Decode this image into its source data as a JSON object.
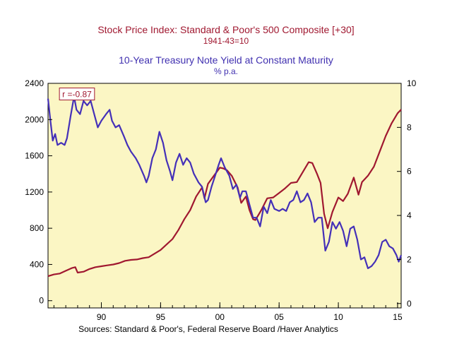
{
  "chart_data": {
    "type": "line",
    "titles": [
      {
        "text": "Stock Price Index: Standard & Poor's 500 Composite [+30]",
        "color": "#a01830"
      },
      {
        "text": "1941-43=10",
        "color": "#a01830"
      },
      {
        "text": "10-Year Treasury Note Yield at Constant Maturity",
        "color": "#4030b0"
      },
      {
        "text": "% p.a.",
        "color": "#4030b0"
      }
    ],
    "annotation": {
      "text": "r =-0.87",
      "x": 1986.7,
      "y_right": 9.5,
      "color": "#a01830"
    },
    "source": "Sources:  Standard & Poor's, Federal Reserve Board /Haver Analytics",
    "background_color": "#fbf6c4",
    "xlim": [
      1985.5,
      2015.3
    ],
    "x_ticks": [
      {
        "value": 1990,
        "label": "90"
      },
      {
        "value": 1995,
        "label": "95"
      },
      {
        "value": 2000,
        "label": "00"
      },
      {
        "value": 2005,
        "label": "05"
      },
      {
        "value": 2010,
        "label": "10"
      },
      {
        "value": 2015,
        "label": "15"
      }
    ],
    "y_left": {
      "lim": [
        -80,
        2400
      ],
      "ticks": [
        0,
        400,
        800,
        1200,
        1600,
        2000,
        2400
      ]
    },
    "y_right": {
      "lim": [
        -0.2,
        10
      ],
      "ticks": [
        0,
        2,
        4,
        6,
        8,
        10
      ]
    },
    "grid": false,
    "series": [
      {
        "axis": "left",
        "color": "#a01830",
        "points": [
          [
            1985.5,
            270
          ],
          [
            1986.0,
            290
          ],
          [
            1986.5,
            300
          ],
          [
            1987.0,
            330
          ],
          [
            1987.5,
            360
          ],
          [
            1987.8,
            370
          ],
          [
            1988.0,
            310
          ],
          [
            1988.5,
            320
          ],
          [
            1989.0,
            350
          ],
          [
            1989.5,
            370
          ],
          [
            1990.0,
            380
          ],
          [
            1990.5,
            390
          ],
          [
            1991.0,
            400
          ],
          [
            1991.5,
            415
          ],
          [
            1992.0,
            440
          ],
          [
            1992.5,
            450
          ],
          [
            1993.0,
            455
          ],
          [
            1993.5,
            470
          ],
          [
            1994.0,
            480
          ],
          [
            1994.5,
            520
          ],
          [
            1995.0,
            560
          ],
          [
            1995.5,
            620
          ],
          [
            1996.0,
            680
          ],
          [
            1996.5,
            780
          ],
          [
            1997.0,
            900
          ],
          [
            1997.5,
            1000
          ],
          [
            1998.0,
            1150
          ],
          [
            1998.5,
            1250
          ],
          [
            1998.7,
            1130
          ],
          [
            1999.0,
            1290
          ],
          [
            1999.5,
            1380
          ],
          [
            2000.0,
            1470
          ],
          [
            2000.3,
            1460
          ],
          [
            2000.6,
            1440
          ],
          [
            2001.0,
            1380
          ],
          [
            2001.5,
            1250
          ],
          [
            2001.8,
            1080
          ],
          [
            2002.2,
            1150
          ],
          [
            2002.5,
            1000
          ],
          [
            2002.8,
            900
          ],
          [
            2003.0,
            890
          ],
          [
            2003.5,
            1000
          ],
          [
            2004.0,
            1130
          ],
          [
            2004.5,
            1140
          ],
          [
            2005.0,
            1190
          ],
          [
            2005.5,
            1240
          ],
          [
            2006.0,
            1300
          ],
          [
            2006.5,
            1310
          ],
          [
            2007.0,
            1420
          ],
          [
            2007.5,
            1530
          ],
          [
            2007.8,
            1520
          ],
          [
            2008.2,
            1400
          ],
          [
            2008.5,
            1300
          ],
          [
            2008.8,
            960
          ],
          [
            2009.1,
            800
          ],
          [
            2009.5,
            980
          ],
          [
            2010.0,
            1140
          ],
          [
            2010.4,
            1100
          ],
          [
            2010.8,
            1180
          ],
          [
            2011.3,
            1360
          ],
          [
            2011.7,
            1170
          ],
          [
            2012.0,
            1310
          ],
          [
            2012.5,
            1380
          ],
          [
            2013.0,
            1480
          ],
          [
            2013.5,
            1650
          ],
          [
            2014.0,
            1820
          ],
          [
            2014.5,
            1960
          ],
          [
            2015.0,
            2070
          ],
          [
            2015.3,
            2110
          ]
        ]
      },
      {
        "axis": "right",
        "color": "#4430b8",
        "points": [
          [
            1985.5,
            9.3
          ],
          [
            1985.7,
            8.3
          ],
          [
            1985.9,
            7.4
          ],
          [
            1986.1,
            7.7
          ],
          [
            1986.3,
            7.2
          ],
          [
            1986.6,
            7.3
          ],
          [
            1986.9,
            7.2
          ],
          [
            1987.1,
            7.5
          ],
          [
            1987.4,
            8.5
          ],
          [
            1987.7,
            9.4
          ],
          [
            1987.9,
            8.8
          ],
          [
            1988.2,
            8.6
          ],
          [
            1988.5,
            9.2
          ],
          [
            1988.8,
            9.0
          ],
          [
            1989.1,
            9.2
          ],
          [
            1989.4,
            8.6
          ],
          [
            1989.7,
            8.0
          ],
          [
            1990.0,
            8.3
          ],
          [
            1990.4,
            8.6
          ],
          [
            1990.7,
            8.8
          ],
          [
            1990.9,
            8.3
          ],
          [
            1991.2,
            8.0
          ],
          [
            1991.5,
            8.1
          ],
          [
            1991.9,
            7.6
          ],
          [
            1992.2,
            7.2
          ],
          [
            1992.5,
            6.9
          ],
          [
            1992.9,
            6.6
          ],
          [
            1993.2,
            6.3
          ],
          [
            1993.6,
            5.8
          ],
          [
            1993.8,
            5.5
          ],
          [
            1994.0,
            5.8
          ],
          [
            1994.3,
            6.6
          ],
          [
            1994.6,
            7.0
          ],
          [
            1994.9,
            7.8
          ],
          [
            1995.2,
            7.3
          ],
          [
            1995.5,
            6.5
          ],
          [
            1995.8,
            6.0
          ],
          [
            1996.0,
            5.6
          ],
          [
            1996.3,
            6.4
          ],
          [
            1996.6,
            6.8
          ],
          [
            1996.9,
            6.3
          ],
          [
            1997.2,
            6.6
          ],
          [
            1997.5,
            6.4
          ],
          [
            1997.8,
            5.9
          ],
          [
            1998.2,
            5.5
          ],
          [
            1998.5,
            5.3
          ],
          [
            1998.8,
            4.6
          ],
          [
            1999.0,
            4.7
          ],
          [
            1999.3,
            5.3
          ],
          [
            1999.6,
            5.8
          ],
          [
            1999.9,
            6.3
          ],
          [
            2000.1,
            6.6
          ],
          [
            2000.4,
            6.2
          ],
          [
            2000.8,
            5.8
          ],
          [
            2001.1,
            5.2
          ],
          [
            2001.4,
            5.4
          ],
          [
            2001.7,
            4.8
          ],
          [
            2001.9,
            5.1
          ],
          [
            2002.2,
            5.1
          ],
          [
            2002.5,
            4.5
          ],
          [
            2002.8,
            3.9
          ],
          [
            2003.1,
            3.9
          ],
          [
            2003.4,
            3.5
          ],
          [
            2003.7,
            4.4
          ],
          [
            2004.0,
            4.1
          ],
          [
            2004.3,
            4.7
          ],
          [
            2004.6,
            4.3
          ],
          [
            2005.0,
            4.2
          ],
          [
            2005.3,
            4.3
          ],
          [
            2005.6,
            4.2
          ],
          [
            2005.9,
            4.6
          ],
          [
            2006.2,
            4.7
          ],
          [
            2006.5,
            5.1
          ],
          [
            2006.8,
            4.6
          ],
          [
            2007.1,
            4.7
          ],
          [
            2007.4,
            5.0
          ],
          [
            2007.7,
            4.6
          ],
          [
            2008.0,
            3.7
          ],
          [
            2008.3,
            3.9
          ],
          [
            2008.6,
            3.9
          ],
          [
            2008.9,
            2.4
          ],
          [
            2009.2,
            2.8
          ],
          [
            2009.5,
            3.7
          ],
          [
            2009.8,
            3.4
          ],
          [
            2010.1,
            3.7
          ],
          [
            2010.4,
            3.3
          ],
          [
            2010.7,
            2.6
          ],
          [
            2011.0,
            3.4
          ],
          [
            2011.3,
            3.5
          ],
          [
            2011.6,
            2.9
          ],
          [
            2011.9,
            2.0
          ],
          [
            2012.2,
            2.1
          ],
          [
            2012.5,
            1.6
          ],
          [
            2012.8,
            1.7
          ],
          [
            2013.1,
            1.9
          ],
          [
            2013.4,
            2.2
          ],
          [
            2013.7,
            2.8
          ],
          [
            2014.0,
            2.9
          ],
          [
            2014.3,
            2.6
          ],
          [
            2014.6,
            2.5
          ],
          [
            2014.9,
            2.2
          ],
          [
            2015.1,
            1.9
          ],
          [
            2015.3,
            2.2
          ]
        ]
      }
    ]
  }
}
